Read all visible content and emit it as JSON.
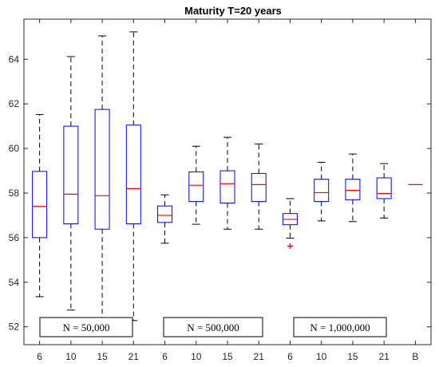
{
  "chart_data": {
    "type": "box",
    "title": "Maturity T=20 years",
    "xlabel": "",
    "ylabel": "",
    "ylim": [
      51.2,
      65.8
    ],
    "yticks": [
      52,
      54,
      56,
      58,
      60,
      62,
      64
    ],
    "ytick_labels": [
      "52",
      "54",
      "56",
      "58",
      "60",
      "62",
      "64"
    ],
    "grid": false,
    "categories": [
      "6",
      "10",
      "15",
      "21",
      "6",
      "10",
      "15",
      "21",
      "6",
      "10",
      "15",
      "21",
      "B"
    ],
    "boxes": [
      {
        "label": "6",
        "whisker_low": 53.35,
        "q1": 56.0,
        "median": 57.4,
        "q3": 58.97,
        "whisker_high": 61.52,
        "outliers": []
      },
      {
        "label": "10",
        "whisker_low": 52.75,
        "q1": 56.62,
        "median": 57.95,
        "q3": 61.0,
        "whisker_high": 64.12,
        "outliers": []
      },
      {
        "label": "15",
        "whisker_low": 52.3,
        "q1": 56.38,
        "median": 57.88,
        "q3": 61.75,
        "whisker_high": 65.05,
        "outliers": []
      },
      {
        "label": "21",
        "whisker_low": 52.28,
        "q1": 56.62,
        "median": 58.2,
        "q3": 61.05,
        "whisker_high": 65.23,
        "outliers": []
      },
      {
        "label": "6",
        "whisker_low": 55.75,
        "q1": 56.68,
        "median": 57.0,
        "q3": 57.42,
        "whisker_high": 57.92,
        "outliers": []
      },
      {
        "label": "10",
        "whisker_low": 56.6,
        "q1": 57.62,
        "median": 58.35,
        "q3": 58.95,
        "whisker_high": 60.1,
        "outliers": []
      },
      {
        "label": "15",
        "whisker_low": 56.38,
        "q1": 57.55,
        "median": 58.42,
        "q3": 59.0,
        "whisker_high": 60.5,
        "outliers": []
      },
      {
        "label": "21",
        "whisker_low": 56.38,
        "q1": 57.62,
        "median": 58.38,
        "q3": 58.88,
        "whisker_high": 60.2,
        "outliers": []
      },
      {
        "label": "6",
        "whisker_low": 55.98,
        "q1": 56.58,
        "median": 56.82,
        "q3": 57.08,
        "whisker_high": 57.75,
        "outliers": [
          55.62
        ]
      },
      {
        "label": "10",
        "whisker_low": 56.75,
        "q1": 57.62,
        "median": 58.02,
        "q3": 58.62,
        "whisker_high": 59.38,
        "outliers": []
      },
      {
        "label": "15",
        "whisker_low": 56.72,
        "q1": 57.7,
        "median": 58.12,
        "q3": 58.62,
        "whisker_high": 59.75,
        "outliers": []
      },
      {
        "label": "21",
        "whisker_low": 56.88,
        "q1": 57.75,
        "median": 57.98,
        "q3": 58.68,
        "whisker_high": 59.32,
        "outliers": []
      },
      {
        "label": "B",
        "whisker_low": 58.38,
        "q1": 58.38,
        "median": 58.38,
        "q3": 58.38,
        "whisker_high": 58.38,
        "outliers": []
      }
    ],
    "annotations": [
      "N = 50,000",
      "N = 500,000",
      "N = 1,000,000"
    ],
    "colors": {
      "box": "#0000ff",
      "median": "#ff0000",
      "whisker": "#000000",
      "outlier": "#ff0000",
      "axis": "#262626"
    }
  }
}
